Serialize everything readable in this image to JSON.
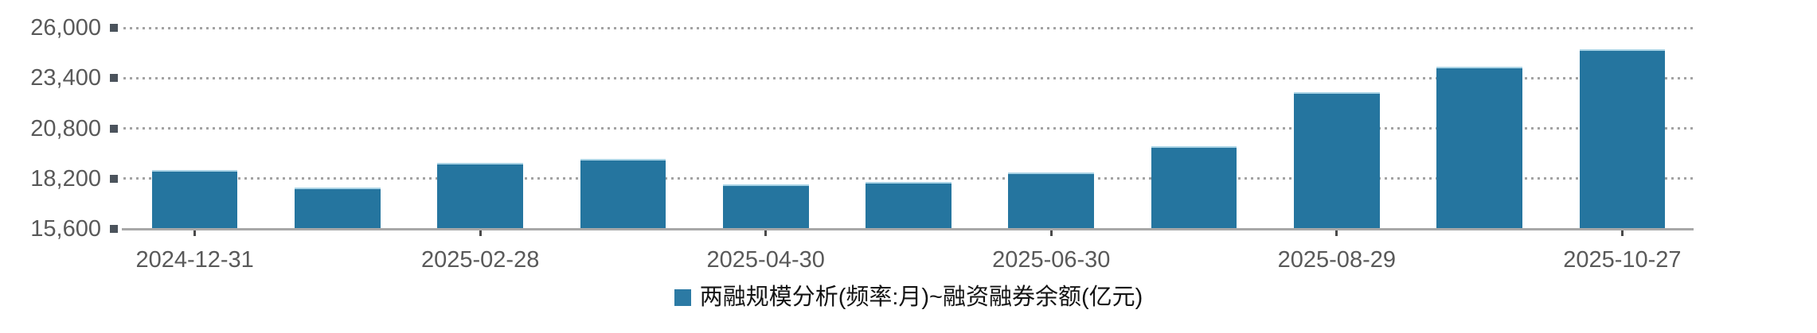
{
  "chart_data": {
    "type": "bar",
    "title": "",
    "legend": [
      "两融规模分析(频率:月)~融资融券余额(亿元)"
    ],
    "legend_position": "bottom-center",
    "x_tick_labels": [
      "2024-12-31",
      "2025-02-28",
      "2025-04-30",
      "2025-06-30",
      "2025-08-29",
      "2025-10-27"
    ],
    "labeled_bar_indices": [
      0,
      2,
      4,
      6,
      8,
      10
    ],
    "values": [
      18650,
      17720,
      19000,
      19220,
      17890,
      18010,
      18530,
      19860,
      22660,
      23990,
      24870
    ],
    "ylim": [
      15600,
      26000
    ],
    "yticks": [
      15600,
      18200,
      20800,
      23400,
      26000
    ],
    "ytick_labels": [
      "15,600",
      "18,200",
      "20,800",
      "23,400",
      "26,000"
    ],
    "grid": "horizontal-dotted",
    "bar_color": "#25759F"
  },
  "colors": {
    "background": "#FFFFFF",
    "bar_fill": "#25759F",
    "bar_top_edge": "#A9D3E5",
    "legend_swatch": "#2C7AA4",
    "grid_dotted": "#A3A3A3",
    "axis_line": "#A8A8A8",
    "tick_marker_square": "#4B535C",
    "x_tick_mark": "#4A4A4A",
    "axis_tick_text": "#595959",
    "legend_text": "#141414"
  }
}
